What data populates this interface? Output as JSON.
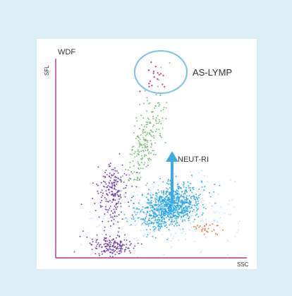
{
  "chart_data": {
    "type": "scatter",
    "title": "WDF",
    "xlabel": "SSC",
    "ylabel": "SFL",
    "xlim": [
      0,
      100
    ],
    "ylim": [
      0,
      100
    ],
    "grid": false,
    "annotations": {
      "as_lymp_label": "AS-LYMP",
      "neut_ri_label": "NEUT-RI"
    },
    "colors": {
      "axis": "#b0357e",
      "as_lymp_circle": "#7cc2e6",
      "arrow": "#3fa9e0",
      "neutrophil": "#1fa3e8",
      "neutrophil_haze": "#9fd2f1",
      "lymphocyte": "#6a2f9c",
      "monocyte": "#6cb56a",
      "eosinophil": "#e36a3a",
      "as_lymp_cells": "#b0357e"
    },
    "series": [
      {
        "color_key": "neutrophil",
        "center": [
          60,
          26
        ],
        "spread": [
          8,
          5
        ],
        "count": 900
      },
      {
        "color_key": "neutrophil_haze",
        "center": [
          58,
          22
        ],
        "spread": [
          18,
          9
        ],
        "count": 300
      },
      {
        "color_key": "monocyte",
        "center": [
          47,
          58
        ],
        "spread": [
          4,
          12
        ],
        "count": 220
      },
      {
        "color_key": "lymphocyte",
        "center": [
          30,
          33
        ],
        "spread": [
          4,
          7
        ],
        "count": 200
      },
      {
        "color_key": "lymphocyte",
        "center": [
          29,
          6
        ],
        "spread": [
          6,
          3
        ],
        "count": 160
      },
      {
        "color_key": "eosinophil",
        "center": [
          78,
          15
        ],
        "spread": [
          4,
          2
        ],
        "count": 30
      },
      {
        "color_key": "as_lymp_cells",
        "center": [
          52,
          90
        ],
        "spread": [
          4,
          4
        ],
        "count": 18
      }
    ]
  }
}
